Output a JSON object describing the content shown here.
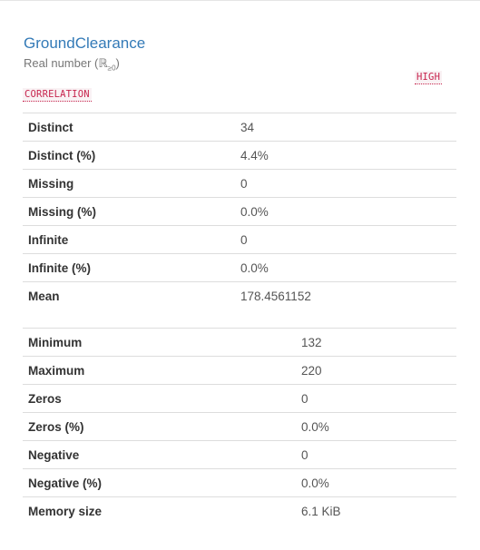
{
  "variable": {
    "name": "GroundClearance",
    "type_label": "Real number (ℝ",
    "type_subscript": "≥0",
    "type_close": ")"
  },
  "alerts": {
    "high_label": "HIGH",
    "correlation_label": "CORRELATION"
  },
  "stats_table_1": {
    "rows": [
      {
        "label": "Distinct",
        "value": "34"
      },
      {
        "label": "Distinct (%)",
        "value": "4.4%"
      },
      {
        "label": "Missing",
        "value": "0"
      },
      {
        "label": "Missing (%)",
        "value": "0.0%"
      },
      {
        "label": "Infinite",
        "value": "0"
      },
      {
        "label": "Infinite (%)",
        "value": "0.0%"
      },
      {
        "label": "Mean",
        "value": "178.4561152"
      }
    ]
  },
  "stats_table_2": {
    "rows": [
      {
        "label": "Minimum",
        "value": "132"
      },
      {
        "label": "Maximum",
        "value": "220"
      },
      {
        "label": "Zeros",
        "value": "0"
      },
      {
        "label": "Zeros (%)",
        "value": "0.0%"
      },
      {
        "label": "Negative",
        "value": "0"
      },
      {
        "label": "Negative (%)",
        "value": "0.0%"
      },
      {
        "label": "Memory size",
        "value": "6.1 KiB"
      }
    ]
  }
}
